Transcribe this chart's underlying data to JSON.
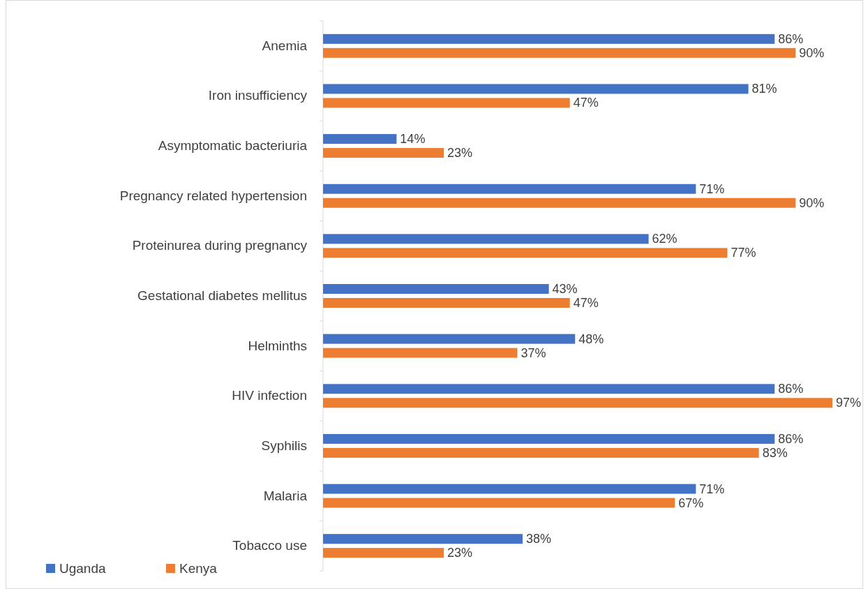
{
  "chart_data": {
    "type": "bar",
    "orientation": "horizontal",
    "legend": "bottom left",
    "categories": [
      "Anemia",
      "Iron insufficiency",
      "Asymptomatic bacteriuria",
      "Pregnancy related hypertension",
      "Proteinurea during pregnancy",
      "Gestational diabetes mellitus",
      "Helminths",
      "HIV infection",
      "Syphilis",
      "Malaria",
      "Tobacco use"
    ],
    "series": [
      {
        "name": "Uganda",
        "color": "#4472c4",
        "values": [
          86,
          81,
          14,
          71,
          62,
          43,
          48,
          86,
          86,
          71,
          38
        ],
        "value_labels": [
          "86%",
          "81%",
          "14%",
          "71%",
          "62%",
          "43%",
          "48%",
          "86%",
          "86%",
          "71%",
          "38%"
        ]
      },
      {
        "name": "Kenya",
        "color": "#ed7d31",
        "values": [
          90,
          47,
          23,
          90,
          77,
          47,
          37,
          97,
          83,
          67,
          23
        ],
        "value_labels": [
          "90%",
          "47%",
          "23%",
          "90%",
          "77%",
          "47%",
          "37%",
          "97%",
          "83%",
          "67%",
          "23%"
        ]
      }
    ]
  }
}
